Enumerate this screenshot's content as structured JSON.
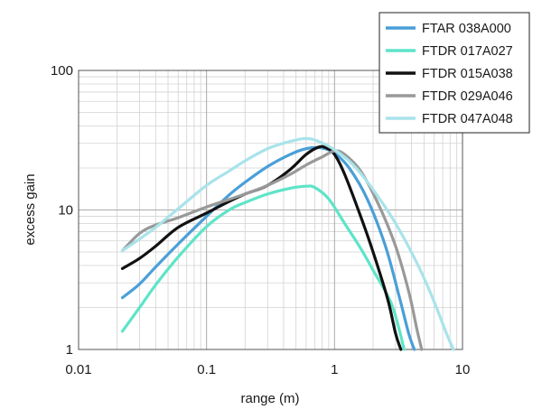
{
  "chart_data": {
    "type": "line",
    "xlabel": "range (m)",
    "ylabel": "excess gain",
    "x_scale": "log",
    "y_scale": "log",
    "xlim": [
      0.01,
      10
    ],
    "ylim": [
      1,
      100
    ],
    "x_ticks": [
      {
        "value": 0.01,
        "label": "0.01"
      },
      {
        "value": 0.1,
        "label": "0.1"
      },
      {
        "value": 1,
        "label": "1"
      },
      {
        "value": 10,
        "label": "10"
      }
    ],
    "y_ticks": [
      {
        "value": 1,
        "label": "1"
      },
      {
        "value": 10,
        "label": "10"
      },
      {
        "value": 100,
        "label": "100"
      }
    ],
    "grid": true,
    "legend_position": "top-right",
    "series": [
      {
        "name": "FTAR 038A000",
        "color": "#4a9fd8",
        "points": [
          [
            0.022,
            2.35
          ],
          [
            0.03,
            2.95
          ],
          [
            0.04,
            3.9
          ],
          [
            0.06,
            5.7
          ],
          [
            0.1,
            9.0
          ],
          [
            0.15,
            12.8
          ],
          [
            0.2,
            15.8
          ],
          [
            0.3,
            20.5
          ],
          [
            0.45,
            25.0
          ],
          [
            0.6,
            27.5
          ],
          [
            0.8,
            27.8
          ],
          [
            1.0,
            25.5
          ],
          [
            1.3,
            20.0
          ],
          [
            1.8,
            12.0
          ],
          [
            2.5,
            5.5
          ],
          [
            3.2,
            2.4
          ],
          [
            3.8,
            1.3
          ],
          [
            4.2,
            1.0
          ]
        ]
      },
      {
        "name": "FTDR 017A027",
        "color": "#5ee4c8",
        "points": [
          [
            0.022,
            1.35
          ],
          [
            0.03,
            2.0
          ],
          [
            0.04,
            2.9
          ],
          [
            0.06,
            4.6
          ],
          [
            0.1,
            7.6
          ],
          [
            0.15,
            10.0
          ],
          [
            0.2,
            11.3
          ],
          [
            0.3,
            13.0
          ],
          [
            0.45,
            14.3
          ],
          [
            0.6,
            14.8
          ],
          [
            0.7,
            14.5
          ],
          [
            0.9,
            12.0
          ],
          [
            1.2,
            8.0
          ],
          [
            1.6,
            5.3
          ],
          [
            2.0,
            3.7
          ],
          [
            2.8,
            2.1
          ],
          [
            3.5,
            1.0
          ]
        ]
      },
      {
        "name": "FTDR 015A038",
        "color": "#111111",
        "points": [
          [
            0.022,
            3.8
          ],
          [
            0.03,
            4.5
          ],
          [
            0.04,
            5.5
          ],
          [
            0.06,
            7.5
          ],
          [
            0.1,
            9.5
          ],
          [
            0.15,
            11.5
          ],
          [
            0.2,
            13.0
          ],
          [
            0.3,
            15.0
          ],
          [
            0.45,
            19.5
          ],
          [
            0.6,
            25.0
          ],
          [
            0.75,
            28.2
          ],
          [
            0.85,
            28.0
          ],
          [
            1.0,
            25.0
          ],
          [
            1.2,
            18.0
          ],
          [
            1.6,
            9.0
          ],
          [
            2.0,
            5.0
          ],
          [
            2.6,
            2.3
          ],
          [
            3.0,
            1.3
          ],
          [
            3.3,
            1.0
          ]
        ]
      },
      {
        "name": "FTDR 029A046",
        "color": "#999999",
        "points": [
          [
            0.022,
            5.1
          ],
          [
            0.03,
            6.8
          ],
          [
            0.04,
            7.8
          ],
          [
            0.06,
            8.8
          ],
          [
            0.1,
            10.5
          ],
          [
            0.2,
            13.0
          ],
          [
            0.3,
            15.0
          ],
          [
            0.45,
            18.0
          ],
          [
            0.6,
            21.0
          ],
          [
            0.8,
            24.0
          ],
          [
            1.0,
            26.5
          ],
          [
            1.2,
            25.0
          ],
          [
            1.6,
            19.0
          ],
          [
            2.2,
            11.0
          ],
          [
            3.0,
            5.5
          ],
          [
            3.8,
            2.6
          ],
          [
            4.4,
            1.4
          ],
          [
            4.8,
            1.0
          ]
        ]
      },
      {
        "name": "FTDR 047A048",
        "color": "#a9e3ea",
        "points": [
          [
            0.022,
            5.1
          ],
          [
            0.03,
            6.2
          ],
          [
            0.04,
            7.5
          ],
          [
            0.06,
            10.2
          ],
          [
            0.1,
            15.0
          ],
          [
            0.15,
            19.0
          ],
          [
            0.2,
            22.5
          ],
          [
            0.3,
            27.5
          ],
          [
            0.45,
            31.0
          ],
          [
            0.6,
            32.5
          ],
          [
            0.75,
            31.0
          ],
          [
            1.0,
            27.0
          ],
          [
            1.4,
            21.0
          ],
          [
            2.0,
            14.0
          ],
          [
            3.0,
            8.0
          ],
          [
            4.5,
            4.0
          ],
          [
            6.0,
            2.2
          ],
          [
            7.5,
            1.3
          ],
          [
            8.5,
            1.0
          ]
        ]
      }
    ]
  }
}
